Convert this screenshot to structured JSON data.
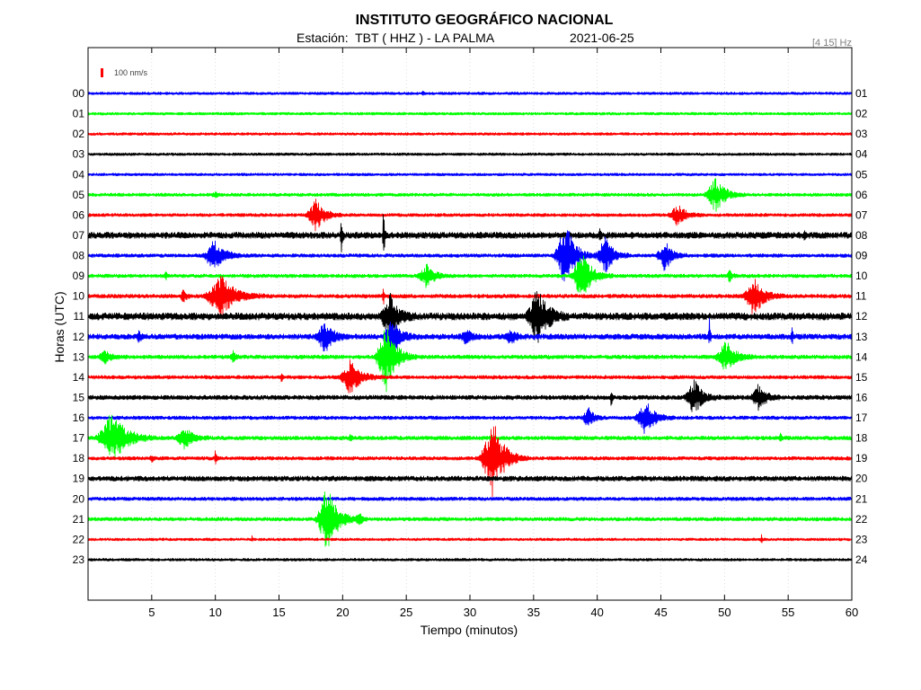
{
  "chart_data": {
    "type": "line",
    "title": "INSTITUTO GEOGRÁFICO NACIONAL",
    "subtitle": "Estación:  TBT ( HHZ ) - LA PALMA",
    "date": "2021-06-25",
    "filter": "[4 15] Hz",
    "scale_label": "100 nm/s",
    "scale_value": 100,
    "xlabel": "Tiempo (minutos)",
    "ylabel": "Horas (UTC)",
    "xlim": [
      0,
      60
    ],
    "xticks": [
      "5",
      "10",
      "15",
      "20",
      "25",
      "30",
      "35",
      "40",
      "45",
      "50",
      "55",
      "60"
    ],
    "grid": "x",
    "series": [
      {
        "label": "00",
        "end_label": "01",
        "color": "#0000ff",
        "noise": 15,
        "events": [
          {
            "t": 26.3,
            "amp": 40,
            "dur": 0.3
          }
        ]
      },
      {
        "label": "01",
        "end_label": "02",
        "color": "#00ff00",
        "noise": 15,
        "events": []
      },
      {
        "label": "02",
        "end_label": "03",
        "color": "#ff0000",
        "noise": 15,
        "events": []
      },
      {
        "label": "03",
        "end_label": "04",
        "color": "#000000",
        "noise": 15,
        "events": []
      },
      {
        "label": "04",
        "end_label": "05",
        "color": "#0000ff",
        "noise": 15,
        "events": []
      },
      {
        "label": "05",
        "end_label": "06",
        "color": "#00ff00",
        "noise": 18,
        "events": [
          {
            "t": 10.0,
            "amp": 40,
            "dur": 1.0
          },
          {
            "t": 49.3,
            "amp": 200,
            "dur": 3.4
          }
        ]
      },
      {
        "label": "06",
        "end_label": "07",
        "color": "#ff0000",
        "noise": 18,
        "events": [
          {
            "t": 17.9,
            "amp": 180,
            "dur": 3.2
          },
          {
            "t": 46.3,
            "amp": 120,
            "dur": 3.0
          }
        ]
      },
      {
        "label": "07",
        "end_label": "08",
        "color": "#000000",
        "noise": 35,
        "events": [
          {
            "t": 19.9,
            "amp": 200,
            "dur": 0.4
          },
          {
            "t": 23.2,
            "amp": 500,
            "dur": 0.3
          },
          {
            "t": 40.2,
            "amp": 60,
            "dur": 0.4
          },
          {
            "t": 56.3,
            "amp": 60,
            "dur": 0.4
          }
        ]
      },
      {
        "label": "08",
        "end_label": "09",
        "color": "#0000ff",
        "noise": 20,
        "events": [
          {
            "t": 9.9,
            "amp": 180,
            "dur": 3.5
          },
          {
            "t": 37.5,
            "amp": 400,
            "dur": 3.5
          },
          {
            "t": 40.6,
            "amp": 230,
            "dur": 3.0
          },
          {
            "t": 45.3,
            "amp": 200,
            "dur": 2.5
          }
        ]
      },
      {
        "label": "09",
        "end_label": "10",
        "color": "#00ff00",
        "noise": 20,
        "events": [
          {
            "t": 6.1,
            "amp": 50,
            "dur": 0.5
          },
          {
            "t": 26.6,
            "amp": 130,
            "dur": 3.0
          },
          {
            "t": 38.8,
            "amp": 270,
            "dur": 3.5
          },
          {
            "t": 50.4,
            "amp": 60,
            "dur": 1.0
          }
        ]
      },
      {
        "label": "10",
        "end_label": "11",
        "color": "#ff0000",
        "noise": 22,
        "events": [
          {
            "t": 7.5,
            "amp": 80,
            "dur": 1.0
          },
          {
            "t": 10.4,
            "amp": 250,
            "dur": 5.0
          },
          {
            "t": 23.2,
            "amp": 150,
            "dur": 0.3
          },
          {
            "t": 52.3,
            "amp": 230,
            "dur": 3.5
          }
        ]
      },
      {
        "label": "11",
        "end_label": "12",
        "color": "#000000",
        "noise": 40,
        "events": [
          {
            "t": 23.7,
            "amp": 250,
            "dur": 3.0
          },
          {
            "t": 35.3,
            "amp": 350,
            "dur": 3.5
          }
        ]
      },
      {
        "label": "12",
        "end_label": "13",
        "color": "#0000ff",
        "noise": 30,
        "events": [
          {
            "t": 4.0,
            "amp": 60,
            "dur": 1.0
          },
          {
            "t": 18.6,
            "amp": 180,
            "dur": 3.0
          },
          {
            "t": 23.9,
            "amp": 200,
            "dur": 3.0
          },
          {
            "t": 29.7,
            "amp": 80,
            "dur": 2.0
          },
          {
            "t": 33.2,
            "amp": 80,
            "dur": 2.0
          },
          {
            "t": 48.8,
            "amp": 250,
            "dur": 0.3
          },
          {
            "t": 55.3,
            "amp": 150,
            "dur": 0.3
          }
        ]
      },
      {
        "label": "13",
        "end_label": "14",
        "color": "#00ff00",
        "noise": 22,
        "events": [
          {
            "t": 1.3,
            "amp": 90,
            "dur": 2.0
          },
          {
            "t": 11.4,
            "amp": 60,
            "dur": 1.0
          },
          {
            "t": 23.4,
            "amp": 400,
            "dur": 3.5
          },
          {
            "t": 50.1,
            "amp": 180,
            "dur": 3.5
          }
        ]
      },
      {
        "label": "14",
        "end_label": "15",
        "color": "#ff0000",
        "noise": 20,
        "events": [
          {
            "t": 15.2,
            "amp": 60,
            "dur": 0.4
          },
          {
            "t": 20.6,
            "amp": 200,
            "dur": 3.5
          }
        ]
      },
      {
        "label": "15",
        "end_label": "16",
        "color": "#000000",
        "noise": 25,
        "events": [
          {
            "t": 41.1,
            "amp": 100,
            "dur": 0.4
          },
          {
            "t": 47.6,
            "amp": 200,
            "dur": 3.0
          },
          {
            "t": 52.7,
            "amp": 150,
            "dur": 2.5
          }
        ]
      },
      {
        "label": "16",
        "end_label": "17",
        "color": "#0000ff",
        "noise": 20,
        "events": [
          {
            "t": 39.3,
            "amp": 120,
            "dur": 2.0
          },
          {
            "t": 43.8,
            "amp": 200,
            "dur": 3.2
          }
        ]
      },
      {
        "label": "17",
        "end_label": "18",
        "color": "#00ff00",
        "noise": 22,
        "events": [
          {
            "t": 1.9,
            "amp": 300,
            "dur": 5.0
          },
          {
            "t": 7.6,
            "amp": 120,
            "dur": 3.0
          },
          {
            "t": 20.6,
            "amp": 50,
            "dur": 0.5
          },
          {
            "t": 54.4,
            "amp": 70,
            "dur": 0.4
          }
        ]
      },
      {
        "label": "18",
        "end_label": "19",
        "color": "#ff0000",
        "noise": 20,
        "events": [
          {
            "t": 5.0,
            "amp": 50,
            "dur": 0.5
          },
          {
            "t": 10.0,
            "amp": 100,
            "dur": 0.4
          },
          {
            "t": 31.8,
            "amp": 450,
            "dur": 4.0
          }
        ]
      },
      {
        "label": "19",
        "end_label": "20",
        "color": "#000000",
        "noise": 28,
        "events": []
      },
      {
        "label": "20",
        "end_label": "21",
        "color": "#0000ff",
        "noise": 20,
        "events": []
      },
      {
        "label": "21",
        "end_label": "22",
        "color": "#00ff00",
        "noise": 20,
        "events": [
          {
            "t": 18.8,
            "amp": 400,
            "dur": 3.5
          },
          {
            "t": 21.3,
            "amp": 70,
            "dur": 1.2
          }
        ]
      },
      {
        "label": "22",
        "end_label": "23",
        "color": "#ff0000",
        "noise": 15,
        "events": [
          {
            "t": 12.9,
            "amp": 40,
            "dur": 0.3
          },
          {
            "t": 52.9,
            "amp": 60,
            "dur": 0.3
          }
        ]
      },
      {
        "label": "23",
        "end_label": "24",
        "color": "#000000",
        "noise": 15,
        "events": []
      }
    ]
  }
}
